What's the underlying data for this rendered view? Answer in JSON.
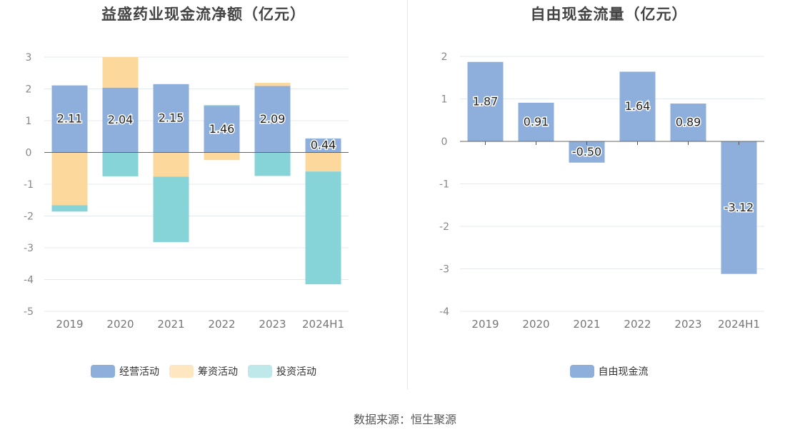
{
  "footer": {
    "source": "数据来源：恒生聚源"
  },
  "chart_data": [
    {
      "type": "bar",
      "stacked": true,
      "title": "益盛药业现金流净额（亿元）",
      "categories": [
        "2019",
        "2020",
        "2021",
        "2022",
        "2023",
        "2024H1"
      ],
      "ylim": [
        -5,
        3
      ],
      "yticks": [
        "3",
        "2",
        "1",
        "0",
        "-1",
        "-2",
        "-3",
        "-4",
        "-5"
      ],
      "grid": true,
      "legend_position": "bottom",
      "series": [
        {
          "name": "经营活动",
          "color": "#8eaedb",
          "values": [
            2.11,
            2.04,
            2.15,
            1.46,
            2.09,
            0.44
          ],
          "labels": [
            "2.11",
            "2.04",
            "2.15",
            "1.46",
            "2.09",
            "0.44"
          ]
        },
        {
          "name": "筹资活动",
          "color": "#fdd89c",
          "values": [
            -1.66,
            0.96,
            -0.76,
            -0.24,
            0.1,
            -0.6
          ]
        },
        {
          "name": "投资活动",
          "color": "#86d3d8",
          "values": [
            -0.2,
            -0.75,
            -2.06,
            0.03,
            -0.74,
            -3.55
          ]
        }
      ]
    },
    {
      "type": "bar",
      "title": "自由现金流量（亿元）",
      "categories": [
        "2019",
        "2020",
        "2021",
        "2022",
        "2023",
        "2024H1"
      ],
      "ylim": [
        -4,
        2
      ],
      "yticks": [
        "2",
        "1",
        "0",
        "-1",
        "-2",
        "-3",
        "-4"
      ],
      "grid": true,
      "legend_position": "bottom",
      "series": [
        {
          "name": "自由现金流",
          "color": "#8eaedb",
          "values": [
            1.87,
            0.91,
            -0.5,
            1.64,
            0.89,
            -3.12
          ],
          "labels": [
            "1.87",
            "0.91",
            "-0.50",
            "1.64",
            "0.89",
            "-3.12"
          ]
        }
      ]
    }
  ]
}
